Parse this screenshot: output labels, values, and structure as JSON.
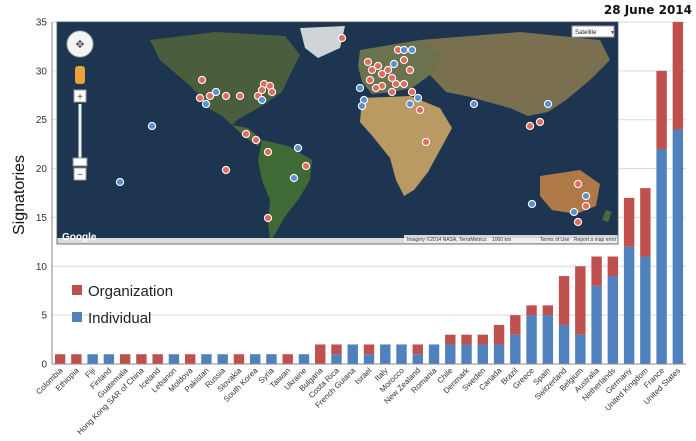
{
  "chart_data": {
    "type": "bar",
    "stacked": true,
    "title": "28 June 2014",
    "ylabel": "Signatories",
    "xlabel": "",
    "ylim": [
      0,
      35
    ],
    "yticks": [
      0,
      5,
      10,
      15,
      20,
      25,
      30,
      35
    ],
    "grid": true,
    "legend_position": "left",
    "categories": [
      "Colombia",
      "Ethiopia",
      "Fiji",
      "Finland",
      "Guatemala",
      "Hong Kong SAR of China",
      "Iceland",
      "Lebanon",
      "Moldova",
      "Pakistan",
      "Russia",
      "Slovakia",
      "South Korea",
      "Syria",
      "Taiwan",
      "Ukraine",
      "Bulgaria",
      "Costa Rica",
      "French Guiana",
      "Israel",
      "Italy",
      "Morocco",
      "New Zealand",
      "Romania",
      "Chile",
      "Denmark",
      "Sweden",
      "Canada",
      "Brazil",
      "Greece",
      "Spain",
      "Switzerland",
      "Belgium",
      "Australia",
      "Netherlands",
      "Germany",
      "United Kingdom",
      "France",
      "United States"
    ],
    "series": [
      {
        "name": "Organization",
        "color": "#c0504d",
        "values": [
          1,
          1,
          0,
          0,
          1,
          1,
          1,
          0,
          1,
          0,
          0,
          1,
          0,
          0,
          1,
          0,
          2,
          1,
          0,
          1,
          0,
          0,
          1,
          0,
          1,
          1,
          1,
          2,
          2,
          1,
          1,
          5,
          7,
          3,
          2,
          5,
          7,
          8,
          11
        ]
      },
      {
        "name": "Individual",
        "color": "#4f81bd",
        "values": [
          0,
          0,
          1,
          1,
          0,
          0,
          0,
          1,
          0,
          1,
          1,
          0,
          1,
          1,
          0,
          1,
          0,
          1,
          2,
          1,
          2,
          2,
          1,
          2,
          2,
          2,
          2,
          2,
          3,
          5,
          5,
          4,
          3,
          8,
          9,
          12,
          11,
          22,
          24
        ]
      }
    ],
    "map_inset": {
      "type_selector": "Satellite",
      "logo": "Google",
      "attribution": "Imagery ©2014 NASA, TerraMetrics",
      "scale": "1000 km",
      "terms": "Terms of Use",
      "report": "Report a map error"
    }
  }
}
